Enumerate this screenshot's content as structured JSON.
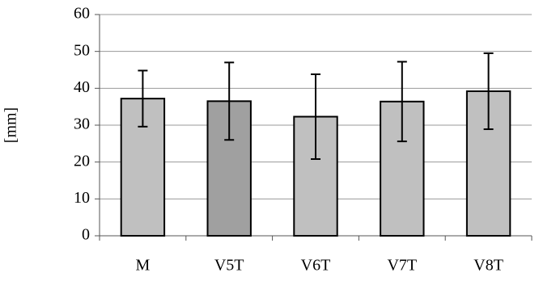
{
  "chart_data": {
    "type": "bar",
    "y_label": "[mm]",
    "categories": [
      "M",
      "V5T",
      "V6T",
      "V7T",
      "V8T"
    ],
    "values": [
      37.2,
      36.5,
      32.3,
      36.4,
      39.2
    ],
    "errors": [
      7.6,
      10.5,
      11.5,
      10.8,
      10.3
    ],
    "colors": [
      "#c0c0c0",
      "#a0a0a0",
      "#c0c0c0",
      "#c0c0c0",
      "#c0c0c0"
    ],
    "ylim": [
      0,
      60
    ],
    "yticks": [
      0,
      10,
      20,
      30,
      40,
      50,
      60
    ],
    "grid": true
  }
}
